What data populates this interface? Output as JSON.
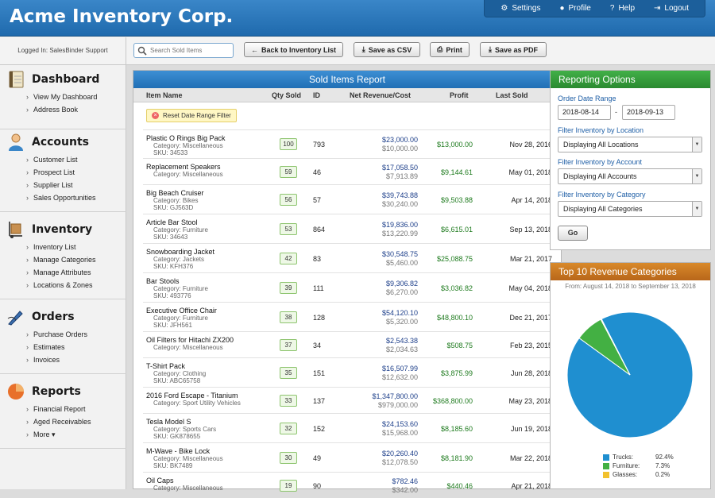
{
  "app": {
    "title": "Acme Inventory Corp."
  },
  "topnav": [
    {
      "label": "Settings",
      "icon": "gear-icon",
      "glyph": "⚙"
    },
    {
      "label": "Profile",
      "icon": "user-icon",
      "glyph": "👤"
    },
    {
      "label": "Help",
      "icon": "question-icon",
      "glyph": "?"
    },
    {
      "label": "Logout",
      "icon": "logout-icon",
      "glyph": "⇥"
    }
  ],
  "login": {
    "text": "Logged In: SalesBinder Support"
  },
  "search": {
    "placeholder": "Search Sold Items"
  },
  "toolbar": {
    "back_label": "Back to Inventory List",
    "csv_label": "Save as CSV",
    "print_label": "Print",
    "pdf_label": "Save as PDF"
  },
  "sidebar": [
    {
      "title": "Dashboard",
      "icon": "notebook-icon",
      "items": [
        "View My Dashboard",
        "Address Book"
      ]
    },
    {
      "title": "Accounts",
      "icon": "person-icon",
      "items": [
        "Customer List",
        "Prospect List",
        "Supplier List",
        "Sales Opportunities"
      ]
    },
    {
      "title": "Inventory",
      "icon": "hand-truck-icon",
      "items": [
        "Inventory List",
        "Manage Categories",
        "Manage Attributes",
        "Locations & Zones"
      ]
    },
    {
      "title": "Orders",
      "icon": "pen-icon",
      "items": [
        "Purchase Orders",
        "Estimates",
        "Invoices"
      ]
    },
    {
      "title": "Reports",
      "icon": "pie-chart-icon",
      "items": [
        "Financial Report",
        "Aged Receivables",
        "More ▾"
      ]
    }
  ],
  "report": {
    "title": "Sold Items Report",
    "columns": {
      "item": "Item Name",
      "qty": "Qty Sold",
      "id": "ID",
      "rev": "Net Revenue/Cost",
      "profit": "Profit",
      "last": "Last Sold"
    },
    "reset_label": "Reset Date Range Filter",
    "rows": [
      {
        "name": "Plastic O Rings Big Pack",
        "category": "Category: Miscellaneous",
        "sku": "SKU: 34533",
        "qty": "100",
        "id": "793",
        "revenue": "$23,000.00",
        "cost": "$10,000.00",
        "profit": "$13,000.00",
        "date": "Nov 28, 2016"
      },
      {
        "name": "Replacement Speakers",
        "category": "Category: Miscellaneous",
        "sku": "",
        "qty": "59",
        "id": "46",
        "revenue": "$17,058.50",
        "cost": "$7,913.89",
        "profit": "$9,144.61",
        "date": "May 01, 2018"
      },
      {
        "name": "Big Beach Cruiser",
        "category": "Category: Bikes",
        "sku": "SKU: GJ563D",
        "qty": "56",
        "id": "57",
        "revenue": "$39,743.88",
        "cost": "$30,240.00",
        "profit": "$9,503.88",
        "date": "Apr 14, 2018"
      },
      {
        "name": "Article Bar Stool",
        "category": "Category: Furniture",
        "sku": "SKU: 34643",
        "qty": "53",
        "id": "864",
        "revenue": "$19,836.00",
        "cost": "$13,220.99",
        "profit": "$6,615.01",
        "date": "Sep 13, 2018"
      },
      {
        "name": "Snowboarding Jacket",
        "category": "Category: Jackets",
        "sku": "SKU: KFH376",
        "qty": "42",
        "id": "83",
        "revenue": "$30,548.75",
        "cost": "$5,460.00",
        "profit": "$25,088.75",
        "date": "Mar 21, 2017"
      },
      {
        "name": "Bar Stools",
        "category": "Category: Furniture",
        "sku": "SKU: 493776",
        "qty": "39",
        "id": "111",
        "revenue": "$9,306.82",
        "cost": "$6,270.00",
        "profit": "$3,036.82",
        "date": "May 04, 2018"
      },
      {
        "name": "Executive Office Chair",
        "category": "Category: Furniture",
        "sku": "SKU: JFH561",
        "qty": "38",
        "id": "128",
        "revenue": "$54,120.10",
        "cost": "$5,320.00",
        "profit": "$48,800.10",
        "date": "Dec 21, 2017"
      },
      {
        "name": "Oil Filters for Hitachi ZX200",
        "category": "Category: Miscellaneous",
        "sku": "",
        "qty": "37",
        "id": "34",
        "revenue": "$2,543.38",
        "cost": "$2,034.63",
        "profit": "$508.75",
        "date": "Feb 23, 2015"
      },
      {
        "name": "T-Shirt Pack",
        "category": "Category: Clothing",
        "sku": "SKU: ABC65758",
        "qty": "35",
        "id": "151",
        "revenue": "$16,507.99",
        "cost": "$12,632.00",
        "profit": "$3,875.99",
        "date": "Jun 28, 2018"
      },
      {
        "name": "2016 Ford Escape - Titanium",
        "category": "Category: Sport Utility Vehicles",
        "sku": "",
        "qty": "33",
        "id": "137",
        "revenue": "$1,347,800.00",
        "cost": "$979,000.00",
        "profit": "$368,800.00",
        "date": "May 23, 2018"
      },
      {
        "name": "Tesla Model S",
        "category": "Category: Sports Cars",
        "sku": "SKU: GK878655",
        "qty": "32",
        "id": "152",
        "revenue": "$24,153.60",
        "cost": "$15,968.00",
        "profit": "$8,185.60",
        "date": "Jun 19, 2018"
      },
      {
        "name": "M-Wave - Bike Lock",
        "category": "Category: Miscellaneous",
        "sku": "SKU: BK7489",
        "qty": "30",
        "id": "49",
        "revenue": "$20,260.40",
        "cost": "$12,078.50",
        "profit": "$8,181.90",
        "date": "Mar 22, 2018"
      },
      {
        "name": "Oil Caps",
        "category": "Category: Miscellaneous",
        "sku": "",
        "qty": "19",
        "id": "90",
        "revenue": "$782.46",
        "cost": "$342.00",
        "profit": "$440.46",
        "date": "Apr 21, 2018"
      }
    ]
  },
  "options": {
    "title": "Reporting Options",
    "date_label": "Order Date Range",
    "date_from": "2018-08-14",
    "date_sep": "-",
    "date_to": "2018-09-13",
    "location_label": "Filter Inventory by Location",
    "location_value": "Displaying All Locations",
    "account_label": "Filter Inventory by Account",
    "account_value": "Displaying All Accounts",
    "category_label": "Filter Inventory by Category",
    "category_value": "Displaying All Categories",
    "go_label": "Go"
  },
  "top10": {
    "title": "Top 10 Revenue Categories",
    "subtitle": "From: August 14, 2018 to September 13, 2018"
  },
  "chart_data": {
    "type": "pie",
    "title": "Top 10 Revenue Categories",
    "series": [
      {
        "name": "Trucks:",
        "label": "92.4%",
        "value": 92.4,
        "color": "#1f8fd0"
      },
      {
        "name": "Furniture:",
        "label": "7.3%",
        "value": 7.3,
        "color": "#43b043"
      },
      {
        "name": "Glasses:",
        "label": "0.2%",
        "value": 0.2,
        "color": "#f2c12e"
      }
    ],
    "legend": "bottom"
  }
}
